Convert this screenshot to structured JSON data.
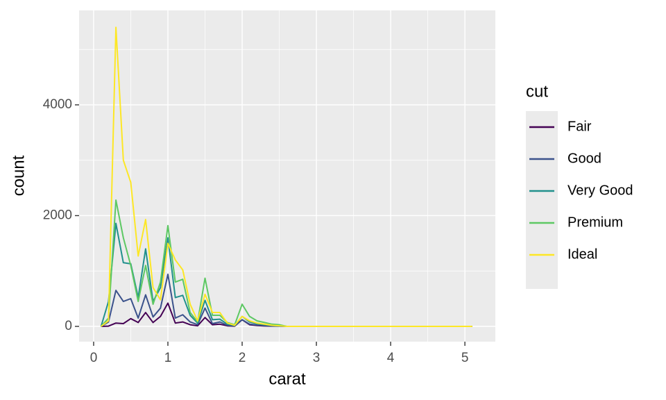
{
  "chart_data": {
    "type": "line",
    "x_label": "carat",
    "y_label": "count",
    "legend_title": "cut",
    "x": [
      0.1,
      0.2,
      0.3,
      0.4,
      0.5,
      0.6,
      0.7,
      0.8,
      0.9,
      1.0,
      1.1,
      1.2,
      1.3,
      1.4,
      1.5,
      1.6,
      1.7,
      1.8,
      1.9,
      2.0,
      2.1,
      2.2,
      2.3,
      2.4,
      2.5,
      2.6,
      2.7,
      2.8,
      2.9,
      3.0,
      3.1,
      3.2,
      3.3,
      3.4,
      3.5,
      3.6,
      3.7,
      3.8,
      3.9,
      4.0,
      4.1,
      4.2,
      4.3,
      4.4,
      4.5,
      4.6,
      4.7,
      4.8,
      4.9,
      5.0,
      5.1
    ],
    "series": [
      {
        "name": "Fair",
        "color": "#440154",
        "values": [
          0,
          5,
          60,
          50,
          140,
          70,
          250,
          70,
          180,
          420,
          60,
          80,
          30,
          10,
          160,
          30,
          40,
          10,
          5,
          120,
          30,
          15,
          8,
          5,
          4,
          0,
          0,
          0,
          0,
          0,
          0,
          0,
          0,
          0,
          0,
          0,
          0,
          0,
          0,
          0,
          0,
          0,
          0,
          0,
          0,
          0,
          0,
          0,
          0,
          0,
          0
        ]
      },
      {
        "name": "Good",
        "color": "#3B528B",
        "values": [
          0,
          80,
          650,
          450,
          500,
          150,
          570,
          170,
          330,
          940,
          150,
          210,
          80,
          30,
          330,
          50,
          80,
          20,
          10,
          120,
          40,
          25,
          15,
          8,
          5,
          0,
          0,
          0,
          0,
          0,
          0,
          0,
          0,
          0,
          0,
          0,
          0,
          0,
          0,
          0,
          0,
          0,
          0,
          0,
          0,
          0,
          0,
          0,
          0,
          0,
          0
        ]
      },
      {
        "name": "Very Good",
        "color": "#21908C",
        "values": [
          0,
          450,
          1860,
          1150,
          1130,
          520,
          1400,
          450,
          700,
          1600,
          520,
          560,
          200,
          60,
          470,
          120,
          130,
          40,
          15,
          180,
          80,
          50,
          30,
          15,
          8,
          0,
          0,
          0,
          0,
          0,
          0,
          0,
          0,
          0,
          0,
          0,
          0,
          0,
          0,
          0,
          0,
          0,
          0,
          0,
          0,
          0,
          0,
          0,
          0,
          0,
          0
        ]
      },
      {
        "name": "Premium",
        "color": "#5DC863",
        "values": [
          0,
          150,
          2280,
          1600,
          1100,
          450,
          1100,
          400,
          800,
          1820,
          800,
          850,
          250,
          80,
          870,
          200,
          200,
          70,
          30,
          400,
          180,
          100,
          70,
          40,
          30,
          0,
          0,
          0,
          0,
          0,
          0,
          0,
          0,
          0,
          0,
          0,
          0,
          0,
          0,
          0,
          0,
          0,
          0,
          0,
          0,
          0,
          0,
          0,
          0,
          0,
          0
        ]
      },
      {
        "name": "Ideal",
        "color": "#FDE725",
        "values": [
          0,
          100,
          5400,
          3000,
          2600,
          1270,
          1930,
          700,
          480,
          1500,
          1200,
          1020,
          400,
          100,
          580,
          250,
          250,
          60,
          20,
          180,
          100,
          60,
          40,
          20,
          10,
          0,
          0,
          0,
          0,
          0,
          0,
          0,
          0,
          0,
          0,
          0,
          0,
          0,
          0,
          0,
          0,
          0,
          0,
          0,
          0,
          0,
          0,
          0,
          0,
          0,
          0
        ]
      }
    ],
    "xlim": [
      -0.196,
      5.41
    ],
    "ylim": [
      -276,
      5705
    ],
    "xticks": [
      0,
      1,
      2,
      3,
      4,
      5
    ],
    "yticks": [
      0,
      2000,
      4000
    ],
    "grid": true
  }
}
